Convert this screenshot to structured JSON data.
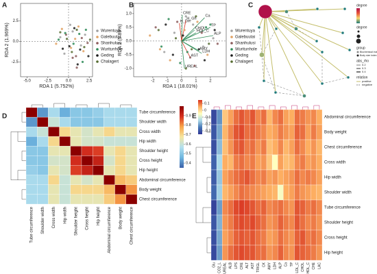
{
  "chart_data": [
    {
      "panel": "A",
      "type": "scatter",
      "x_label": "RDA 1 (5.752%)",
      "y_label": "RDA 2 (1.969%)",
      "xlim": [
        -5.8,
        2.9
      ],
      "ylim": [
        -4.3,
        4.6
      ],
      "xticks": [
        {
          "value": -5,
          "label": "-5.0"
        },
        -2.5,
        {
          "value": 0,
          "label": "0.0"
        },
        2.5
      ],
      "yticks": [
        2.5,
        {
          "value": 0,
          "label": "0.0"
        },
        -2.5
      ],
      "legend": "right",
      "series": [
        {
          "name": "Wurentuya",
          "color": "#9e9e9e",
          "x": [
            -1,
            0.5,
            1.5,
            -0.5,
            2,
            0.2
          ],
          "y": [
            0.5,
            1.2,
            -0.5,
            -1.5,
            0.8,
            2
          ]
        },
        {
          "name": "Galebuutai",
          "color": "#e0a060",
          "x": [
            -0.8,
            0.8,
            1.2,
            -1.5,
            0.3,
            1.8
          ],
          "y": [
            1.5,
            0.3,
            1.8,
            -0.3,
            -0.8,
            -1.2
          ]
        },
        {
          "name": "Shanhulusi",
          "color": "#8b5a5a",
          "x": [
            0.5,
            1,
            -0.3,
            1.6,
            0.9,
            2.3
          ],
          "y": [
            -2,
            -3.2,
            0.8,
            0.4,
            -1.8,
            -0.2
          ]
        },
        {
          "name": "Wuritunhole",
          "color": "#2e8b57",
          "x": [
            -0.4,
            1.3,
            0.6,
            2.1,
            -1.2,
            1.7
          ],
          "y": [
            1,
            0.9,
            -0.3,
            1.4,
            0.2,
            -2.5
          ]
        },
        {
          "name": "Geding",
          "color": "#1a1a1a",
          "x": [
            0.1,
            1.4,
            -0.7,
            2.4,
            0.7,
            1.1
          ],
          "y": [
            -0.6,
            -1,
            -0.9,
            -1.8,
            1.6,
            -2.8
          ]
        },
        {
          "name": "Chalagert",
          "color": "#556b2f",
          "x": [
            -0.2,
            1,
            2.6,
            0.4,
            -1,
            1.9
          ],
          "y": [
            0.3,
            1.4,
            0.2,
            -1.3,
            1.1,
            -0.7
          ]
        }
      ]
    },
    {
      "panel": "B",
      "type": "scatter",
      "x_label": "RDA 1 (18.01%)",
      "y_label": "RDA 2 (5.89%)",
      "xlim": [
        -3.33,
        3.1
      ],
      "ylim": [
        -1.3,
        1.37
      ],
      "xticks": [
        -2,
        -1,
        0,
        1,
        2
      ],
      "yticks": [
        {
          "value": 1,
          "label": "1.0"
        },
        0.5,
        {
          "value": 0,
          "label": "0.0"
        },
        -0.5,
        {
          "value": -1,
          "label": "-1.0"
        }
      ],
      "legend": "right",
      "series": [
        {
          "name": "Wurentuya",
          "color": "#9e9e9e",
          "x": [
            -0.5,
            0.8,
            1.5,
            -1.2,
            0.3,
            2.2
          ],
          "y": [
            0.3,
            0.6,
            -0.2,
            -0.4,
            0.9,
            0.1
          ]
        },
        {
          "name": "Galebuutai",
          "color": "#e0a060",
          "x": [
            -1.5,
            0.2,
            1.1,
            -0.8,
            1.8,
            -2.2
          ],
          "y": [
            -0.3,
            0.4,
            0.7,
            -0.7,
            -0.5,
            0.2
          ]
        },
        {
          "name": "Shanhulusi",
          "color": "#8b5a5a",
          "x": [
            0.6,
            -0.3,
            1.4,
            2.5,
            -1.8,
            0.9
          ],
          "y": [
            -0.6,
            0.7,
            0.3,
            -0.1,
            0.5,
            -0.9
          ]
        },
        {
          "name": "Wuritunhole",
          "color": "#2e8b57",
          "x": [
            -0.9,
            0.4,
            1.7,
            -0.1,
            2,
            -1.4
          ],
          "y": [
            0.8,
            -0.4,
            0.5,
            -0.8,
            0.6,
            -0.2
          ]
        },
        {
          "name": "Geding",
          "color": "#1a1a1a",
          "x": [
            1.2,
            -0.6,
            0.1,
            2.3,
            -1.1,
            1.6
          ],
          "y": [
            -0.3,
            -0.5,
            0.2,
            0.4,
            0.6,
            -0.7
          ]
        },
        {
          "name": "Chalagert",
          "color": "#556b2f",
          "x": [
            -0.4,
            1,
            0.7,
            -1.6,
            1.9,
            0.3
          ],
          "y": [
            0.1,
            0.9,
            -0.3,
            0.4,
            -0.1,
            -1
          ]
        }
      ],
      "arrows": [
        {
          "label": "CRE",
          "x": 0.05,
          "y": 0.95,
          "color": "#2e8b57"
        },
        {
          "label": "H_DH",
          "x": -0.15,
          "y": 0.65,
          "color": "#d7301f"
        },
        {
          "label": "H_Gh",
          "x": 0.3,
          "y": 0.75,
          "color": "#d7301f"
        },
        {
          "label": "Ca",
          "x": 1.6,
          "y": 0.85,
          "color": "#2e8b57"
        },
        {
          "label": "TP",
          "x": 2,
          "y": 0.5,
          "color": "#2e8b57"
        },
        {
          "label": "CHOL",
          "x": 0.9,
          "y": 0.4,
          "color": "#2e8b57"
        },
        {
          "label": "HDL_C",
          "x": 1,
          "y": 0.3,
          "color": "#2e8b57"
        },
        {
          "label": "ALP",
          "x": 2.2,
          "y": 0.2,
          "color": "#2e8b57"
        },
        {
          "label": "AMY",
          "x": 1.2,
          "y": -0.35,
          "color": "#2e8b57"
        },
        {
          "label": "LDH",
          "x": 1.4,
          "y": -0.45,
          "color": "#2e8b57"
        },
        {
          "label": "AST",
          "x": 0.6,
          "y": -0.6,
          "color": "#d7301f"
        },
        {
          "label": "UREAL",
          "x": 0.2,
          "y": -1,
          "color": "#2e8b57"
        }
      ]
    },
    {
      "panel": "C",
      "type": "network",
      "nodes": [
        16,
        2,
        1,
        1,
        1,
        1,
        2,
        1,
        1,
        4,
        1,
        1,
        1,
        1,
        2,
        1,
        1
      ],
      "degree_lim": [
        1,
        16
      ],
      "colors": [
        "#1f7a7a",
        "#f5d76e",
        "#e8553c",
        "#b0124a"
      ],
      "legend_titles": [
        "degree",
        "degree",
        "group",
        "abs_rho",
        "relation"
      ],
      "groups": [
        "Biochemical index",
        "Body size index"
      ],
      "abs_rho_levels": [
        0.2,
        0.3,
        0.4
      ],
      "relations": [
        "positive",
        "negative"
      ]
    },
    {
      "panel": "D",
      "type": "heatmap",
      "rows": [
        "Tube circumference",
        "Shoulder width",
        "Cross width",
        "Hip width",
        "Shoulder height",
        "Cross height",
        "Hip height",
        "Abdominal circumference",
        "Body weight",
        "Chest circumference"
      ],
      "columns": [
        "Tube circumference",
        "Shoulder width",
        "Cross width",
        "Hip width",
        "Shoulder height",
        "Cross height",
        "Hip height",
        "Abdominal circumference",
        "Body weight",
        "Chest circumference"
      ],
      "values": [
        [
          1,
          0.42,
          0.55,
          0.45,
          0.5,
          0.5,
          0.52,
          0.55,
          0.55,
          0.55
        ],
        [
          0.42,
          1,
          0.6,
          0.55,
          0.5,
          0.5,
          0.5,
          0.55,
          0.55,
          0.55
        ],
        [
          0.55,
          0.6,
          1,
          0.7,
          0.65,
          0.62,
          0.65,
          0.7,
          0.65,
          0.65
        ],
        [
          0.45,
          0.55,
          0.7,
          1,
          0.65,
          0.62,
          0.62,
          0.6,
          0.6,
          0.6
        ],
        [
          0.5,
          0.5,
          0.65,
          0.65,
          1,
          0.9,
          0.88,
          0.65,
          0.7,
          0.65
        ],
        [
          0.5,
          0.5,
          0.62,
          0.62,
          0.9,
          1,
          0.92,
          0.62,
          0.7,
          0.65
        ],
        [
          0.52,
          0.5,
          0.65,
          0.62,
          0.88,
          0.92,
          1,
          0.65,
          0.7,
          0.65
        ],
        [
          0.55,
          0.55,
          0.7,
          0.6,
          0.65,
          0.62,
          0.65,
          1,
          0.75,
          0.72
        ],
        [
          0.55,
          0.55,
          0.65,
          0.6,
          0.7,
          0.7,
          0.7,
          0.75,
          1,
          0.8
        ],
        [
          0.55,
          0.55,
          0.65,
          0.6,
          0.65,
          0.65,
          0.65,
          0.72,
          0.8,
          1
        ]
      ],
      "clim": [
        0.35,
        1.0
      ],
      "colors": [
        "#3a5fa8",
        "#6fb7e0",
        "#b3e0ee",
        "#f5e6a0",
        "#f9a64a",
        "#d7301f",
        "#8b0000"
      ],
      "colorbar_ticks": [
        0.9,
        0.8,
        0.7,
        0.6,
        0.5,
        0.4
      ]
    },
    {
      "panel": "E",
      "type": "heatmap",
      "rows": [
        "Abdominal circumference",
        "Body weight",
        "Chest circumference",
        "Cross width",
        "Hip width",
        "Shoulder width",
        "Tube circumference",
        "Shoulder height",
        "Cross height",
        "Hip height"
      ],
      "columns": [
        "Glu",
        "CO2_L",
        "UREAL",
        "ALB",
        "LPS",
        "CRE",
        "ALT",
        "AST",
        "TRIGL",
        "CK",
        "AMY",
        "LDH",
        "ALP",
        "Ca",
        "TP",
        "LDL_C",
        "CHOL",
        "HDL_C",
        "CHE",
        "LAC"
      ],
      "values": [
        [
          -0.32,
          -0.22,
          0.02,
          0.06,
          0.1,
          0.12,
          0.1,
          0.12,
          0.08,
          0.1,
          0.04,
          0.08,
          0.1,
          0.06,
          0.05,
          0.1,
          0.09,
          0.07,
          0.08,
          0.05
        ],
        [
          -0.3,
          -0.2,
          0.04,
          0.08,
          0.12,
          0.13,
          0.1,
          0.11,
          0.09,
          0.08,
          0.05,
          0.06,
          0.09,
          0.07,
          0.06,
          0.11,
          0.1,
          0.06,
          0.09,
          0.06
        ],
        [
          -0.31,
          -0.18,
          0.03,
          0.07,
          0.11,
          0.12,
          0.09,
          0.1,
          0.07,
          0.09,
          0.03,
          0.05,
          0.08,
          0.04,
          0.06,
          0.1,
          0.08,
          0.05,
          0.07,
          0.04
        ],
        [
          -0.28,
          -0.15,
          0.05,
          0.04,
          0.09,
          0.1,
          0.08,
          0.09,
          0.06,
          0.07,
          0.02,
          -0.05,
          0.06,
          0.03,
          0.04,
          0.08,
          0.09,
          0.06,
          0.07,
          0.05
        ],
        [
          -0.29,
          -0.17,
          0.06,
          0.08,
          0.1,
          0.11,
          0.12,
          0.1,
          0.08,
          0.09,
          0.06,
          0.07,
          0.05,
          0.06,
          0.07,
          0.1,
          0.08,
          0.09,
          0.08,
          0.06
        ],
        [
          -0.27,
          -0.16,
          0.04,
          0.06,
          0.08,
          0.1,
          0.09,
          0.08,
          0.07,
          0.06,
          0.05,
          0.04,
          -0.06,
          0.05,
          0.06,
          0.09,
          0.07,
          0.06,
          0.05,
          0.04
        ],
        [
          -0.33,
          -0.21,
          0.08,
          0.1,
          0.13,
          0.14,
          0.13,
          0.12,
          0.1,
          0.11,
          0.08,
          0.09,
          0.1,
          0.08,
          0.07,
          0.12,
          0.11,
          0.09,
          0.1,
          0.08
        ],
        [
          -0.3,
          -0.19,
          0.07,
          0.09,
          0.12,
          0.13,
          0.12,
          0.13,
          0.11,
          0.1,
          0.07,
          0.08,
          0.11,
          0.09,
          0.08,
          0.12,
          0.1,
          0.08,
          0.09,
          0.07
        ],
        [
          -0.31,
          -0.2,
          0.06,
          0.08,
          0.11,
          0.12,
          0.11,
          0.12,
          0.1,
          0.09,
          0.06,
          0.07,
          0.1,
          0.08,
          0.07,
          0.11,
          0.12,
          0.09,
          0.1,
          0.08
        ],
        [
          -0.32,
          -0.21,
          0.07,
          0.1,
          0.12,
          0.13,
          0.12,
          0.12,
          0.1,
          0.1,
          0.07,
          0.08,
          0.11,
          0.08,
          0.07,
          0.12,
          0.11,
          0.1,
          0.09,
          0.07
        ]
      ],
      "clim": [
        -0.35,
        0.15
      ],
      "colors": [
        "#313695",
        "#4575b4",
        "#abd9e9",
        "#ffffbf",
        "#fdae61",
        "#d7301f"
      ],
      "colorbar_ticks": [
        0.1,
        0,
        -0.1,
        -0.2,
        -0.3
      ]
    }
  ]
}
